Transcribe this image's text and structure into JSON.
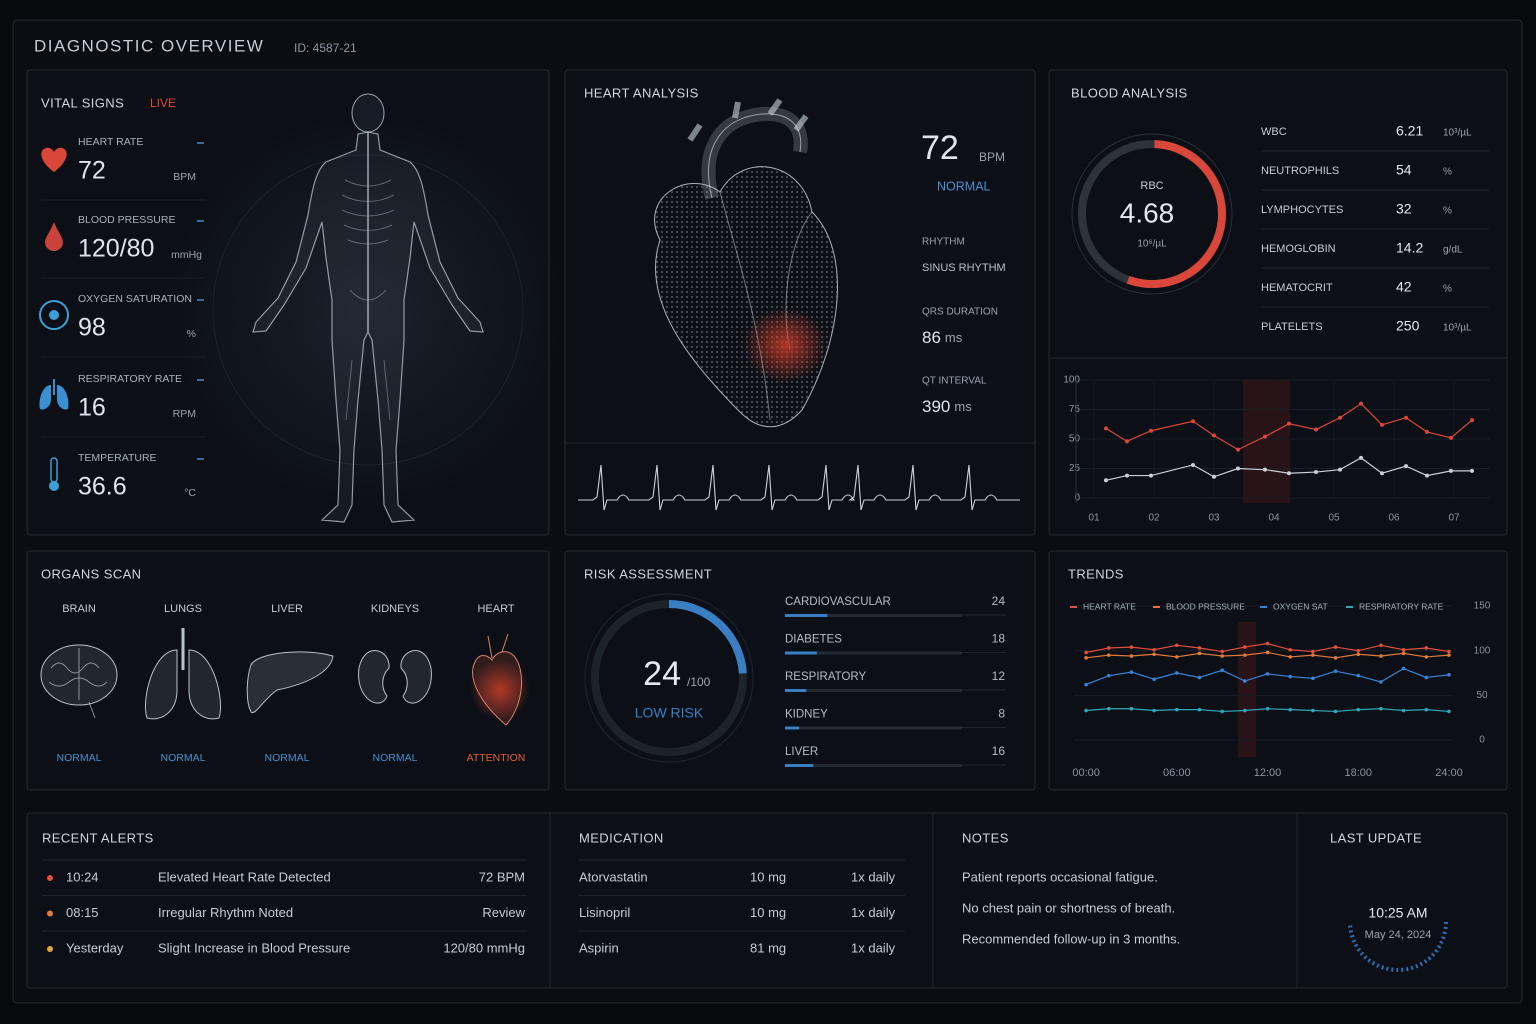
{
  "header": {
    "title": "DIAGNOSTIC OVERVIEW",
    "id": "ID: 4587-21"
  },
  "vital_signs": {
    "title": "VITAL SIGNS",
    "status": "LIVE",
    "items": [
      {
        "label": "HEART RATE",
        "value": "72",
        "unit": "BPM"
      },
      {
        "label": "BLOOD PRESSURE",
        "value": "120/80",
        "unit": "mmHg"
      },
      {
        "label": "OXYGEN SATURATION",
        "value": "98",
        "unit": "%"
      },
      {
        "label": "RESPIRATORY RATE",
        "value": "16",
        "unit": "RPM"
      },
      {
        "label": "TEMPERATURE",
        "value": "36.6",
        "unit": "°C"
      }
    ]
  },
  "heart_analysis": {
    "title": "HEART ANALYSIS",
    "rate": "72",
    "rate_unit": "BPM",
    "status": "NORMAL",
    "rhythm": {
      "label": "RHYTHM",
      "value": "SINUS RHYTHM"
    },
    "metrics": [
      {
        "label": "QRS DURATION",
        "value": "86",
        "unit": "ms"
      },
      {
        "label": "QT INTERVAL",
        "value": "390",
        "unit": "ms"
      }
    ]
  },
  "blood_analysis": {
    "title": "BLOOD ANALYSIS",
    "rbc": {
      "label": "RBC",
      "value": "4.68",
      "unit": "10⁶/µL"
    },
    "rows": [
      [
        "WBC",
        "6.21",
        "10³/µL"
      ],
      [
        "NEUTROPHILS",
        "54",
        "%"
      ],
      [
        "LYMPHOCYTES",
        "32",
        "%"
      ],
      [
        "HEMOGLOBIN",
        "14.2",
        "g/dL"
      ],
      [
        "HEMATOCRIT",
        "42",
        "%"
      ],
      [
        "PLATELETS",
        "250",
        "10³/µL"
      ]
    ],
    "chart": {
      "type": "line",
      "xlim": [
        0.7,
        7.6
      ],
      "xticks": [
        {
          "value": 1,
          "label": "01"
        },
        {
          "value": 2,
          "label": "02"
        },
        {
          "value": 3,
          "label": "03"
        },
        {
          "value": 4,
          "label": "04"
        },
        {
          "value": 5,
          "label": "05"
        },
        {
          "value": 6,
          "label": "06"
        },
        {
          "value": 7,
          "label": "07"
        }
      ],
      "ylim": [
        0,
        100
      ],
      "yticks": [
        0,
        25,
        50,
        75,
        100
      ],
      "x": [
        1.2,
        1.55,
        1.95,
        2.65,
        3.0,
        3.4,
        3.85,
        4.25,
        4.7,
        5.1,
        5.45,
        5.8,
        6.2,
        6.55,
        6.95,
        7.3
      ],
      "series": [
        {
          "color": "#d9463a",
          "values": [
            59,
            48,
            57,
            65,
            53,
            41,
            52,
            63,
            58,
            68,
            80,
            62,
            68,
            56,
            51,
            66
          ]
        },
        {
          "color": "#c9d0d8",
          "values": [
            15,
            19,
            19,
            28,
            18,
            25,
            24,
            21,
            22,
            24,
            34,
            21,
            27,
            19,
            23,
            23
          ]
        }
      ]
    }
  },
  "organs_scan": {
    "title": "ORGANS SCAN",
    "items": [
      {
        "name": "BRAIN",
        "status": "NORMAL",
        "color": "#4a8fd0"
      },
      {
        "name": "LUNGS",
        "status": "NORMAL",
        "color": "#4a8fd0"
      },
      {
        "name": "LIVER",
        "status": "NORMAL",
        "color": "#4a8fd0"
      },
      {
        "name": "KIDNEYS",
        "status": "NORMAL",
        "color": "#4a8fd0"
      },
      {
        "name": "HEART",
        "status": "ATTENTION",
        "color": "#e0603a"
      }
    ]
  },
  "risk_assessment": {
    "title": "RISK ASSESSMENT",
    "score": 24,
    "max": {
      "value": 100,
      "label": "/100"
    },
    "level": "LOW RISK",
    "color": "#3a7fc4",
    "items": [
      {
        "label": "CARDIOVASCULAR",
        "value": 24
      },
      {
        "label": "DIABETES",
        "value": 18
      },
      {
        "label": "RESPIRATORY",
        "value": 12
      },
      {
        "label": "KIDNEY",
        "value": 8
      },
      {
        "label": "LIVER",
        "value": 16
      }
    ]
  },
  "trends": {
    "title": "TRENDS",
    "chart": {
      "type": "line",
      "xlim": [
        -0.8,
        24.2
      ],
      "xticks": [
        {
          "value": 0,
          "label": "00:00"
        },
        {
          "value": 6,
          "label": "06:00"
        },
        {
          "value": 12,
          "label": "12:00"
        },
        {
          "value": 18,
          "label": "18:00"
        },
        {
          "value": 24,
          "label": "24:00"
        }
      ],
      "ylim": [
        0,
        150
      ],
      "yticks": [
        0,
        50,
        100,
        150
      ],
      "x": [
        0,
        1.5,
        3,
        4.5,
        6,
        7.5,
        9,
        10.5,
        12,
        13.5,
        15,
        16.5,
        18,
        19.5,
        21,
        22.5,
        24
      ],
      "series": [
        {
          "name": "HEART RATE",
          "color": "#e0503c",
          "values": [
            98,
            103,
            104,
            101,
            106,
            103,
            99,
            104,
            108,
            101,
            99,
            104,
            100,
            106,
            101,
            103,
            99
          ]
        },
        {
          "name": "BLOOD PRESSURE",
          "color": "#e07a3c",
          "values": [
            92,
            95,
            94,
            96,
            93,
            97,
            94,
            95,
            98,
            93,
            95,
            92,
            96,
            94,
            97,
            93,
            95
          ]
        },
        {
          "name": "OXYGEN SAT",
          "color": "#3a82d6",
          "values": [
            62,
            72,
            76,
            68,
            75,
            70,
            78,
            66,
            74,
            71,
            69,
            77,
            72,
            65,
            80,
            70,
            73
          ]
        },
        {
          "name": "RESPIRATORY RATE",
          "color": "#2fa8b8",
          "values": [
            33,
            35,
            35,
            33,
            34,
            34,
            32,
            33,
            35,
            34,
            33,
            32,
            34,
            35,
            33,
            34,
            32
          ]
        }
      ]
    }
  },
  "recent_alerts": {
    "title": "RECENT ALERTS",
    "rows": [
      {
        "time": "10:24",
        "message": "Elevated Heart Rate Detected",
        "value": "72 BPM",
        "color": "#e0503a"
      },
      {
        "time": "08:15",
        "message": "Irregular Rhythm Noted",
        "value": "Review",
        "color": "#e07a3a"
      },
      {
        "time": "Yesterday",
        "message": "Slight Increase in Blood Pressure",
        "value": "120/80 mmHg",
        "color": "#e0a83a"
      }
    ]
  },
  "medication": {
    "title": "MEDICATION",
    "rows": [
      [
        "Atorvastatin",
        "10 mg",
        "1x daily"
      ],
      [
        "Lisinopril",
        "10 mg",
        "1x daily"
      ],
      [
        "Aspirin",
        "81 mg",
        "1x daily"
      ]
    ]
  },
  "notes": {
    "title": "NOTES",
    "lines": [
      "Patient reports occasional fatigue.",
      "No chest pain or shortness of breath.",
      "Recommended follow-up in 3 months."
    ]
  },
  "last_update": {
    "title": "LAST UPDATE",
    "time": "10:25 AM",
    "date": "May 24, 2024"
  }
}
